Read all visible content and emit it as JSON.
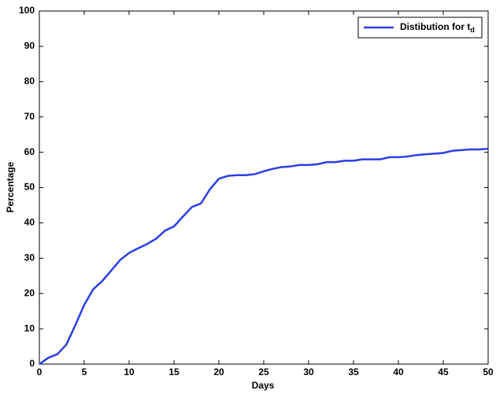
{
  "chart_data": {
    "type": "line",
    "xlabel": "Days",
    "ylabel": "Percentage",
    "x": [
      0,
      1,
      2,
      3,
      4,
      5,
      6,
      7,
      8,
      9,
      10,
      11,
      12,
      13,
      14,
      15,
      16,
      17,
      18,
      19,
      20,
      21,
      22,
      23,
      24,
      25,
      26,
      27,
      28,
      29,
      30,
      31,
      32,
      33,
      34,
      35,
      36,
      37,
      38,
      39,
      40,
      41,
      42,
      43,
      44,
      45,
      46,
      47,
      48,
      49,
      50
    ],
    "series": [
      {
        "name": "Distibution for t_d",
        "color": "#2a3ee6",
        "values": [
          0,
          1.8,
          2.8,
          5.5,
          11,
          16.8,
          21.2,
          23.5,
          26.5,
          29.5,
          31.5,
          32.8,
          34,
          35.5,
          37.8,
          39,
          41.8,
          44.5,
          45.5,
          49.5,
          52.5,
          53.3,
          53.5,
          53.5,
          53.8,
          54.6,
          55.3,
          55.8,
          56,
          56.4,
          56.4,
          56.6,
          57.2,
          57.2,
          57.6,
          57.6,
          58,
          58,
          58,
          58.6,
          58.6,
          58.8,
          59.2,
          59.4,
          59.6,
          59.8,
          60.4,
          60.6,
          60.8,
          60.8,
          61
        ]
      }
    ],
    "xlim": [
      0,
      50
    ],
    "xticks": [
      0,
      5,
      10,
      15,
      20,
      25,
      30,
      35,
      40,
      45,
      50
    ],
    "ylim": [
      0,
      100
    ],
    "yticks": [
      0,
      10,
      20,
      30,
      40,
      50,
      60,
      70,
      80,
      90,
      100
    ],
    "grid": false,
    "legend": "northeast"
  }
}
